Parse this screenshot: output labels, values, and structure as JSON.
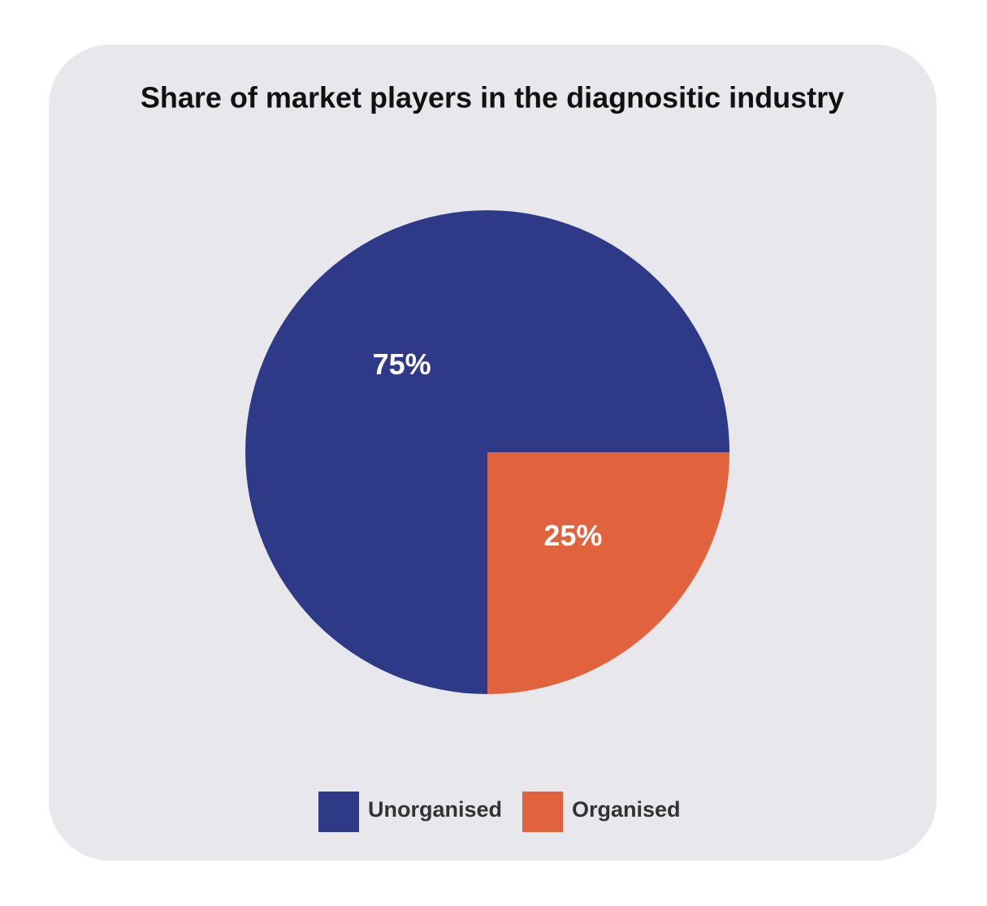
{
  "chart_data": {
    "type": "pie",
    "title": "Share of market players in the diagnositic industry",
    "categories": [
      "Unorganised",
      "Organised"
    ],
    "values": [
      75,
      25
    ],
    "value_labels": [
      "75%",
      "25%"
    ],
    "colors": [
      "#2e3a87",
      "#e0633e"
    ]
  }
}
